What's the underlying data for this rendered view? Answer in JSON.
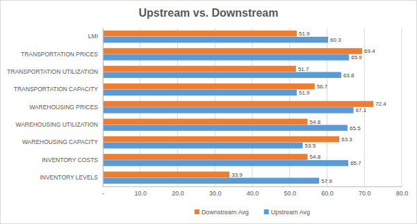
{
  "chart_data": {
    "type": "bar",
    "title": "Upstream vs. Downstream",
    "orientation": "horizontal",
    "categories": [
      "LMI",
      "TRANSPORTATION PRICES",
      "TRANSPORTATION UTILIZATION",
      "TRANSPORTATION CAPACITY",
      "WAREHOUSING PRICES",
      "WAREHOUSING UTILIZATION",
      "WAREHOUSING CAPACITY",
      "INVENTORY COSTS",
      "INVENTORY LEVELS"
    ],
    "series": [
      {
        "name": "Downstream Avg",
        "color": "#ed7d31",
        "values": [
          51.9,
          69.4,
          51.7,
          56.7,
          72.4,
          54.8,
          63.3,
          54.8,
          33.9
        ]
      },
      {
        "name": "Upstream Avg",
        "color": "#5b9bd5",
        "values": [
          60.3,
          65.9,
          63.8,
          51.9,
          67.1,
          65.5,
          53.5,
          65.7,
          57.9
        ]
      }
    ],
    "xlim": [
      0,
      80
    ],
    "xticks": [
      {
        "value": 0,
        "label": "-"
      },
      {
        "value": 10,
        "label": "10.0"
      },
      {
        "value": 20,
        "label": "20.0"
      },
      {
        "value": 30,
        "label": "30.0"
      },
      {
        "value": 40,
        "label": "40.0"
      },
      {
        "value": 50,
        "label": "50.0"
      },
      {
        "value": 60,
        "label": "60.0"
      },
      {
        "value": 70,
        "label": "70.0"
      },
      {
        "value": 80,
        "label": "80.0"
      }
    ],
    "grid": true,
    "data_labels": true,
    "legend": "bottom"
  }
}
